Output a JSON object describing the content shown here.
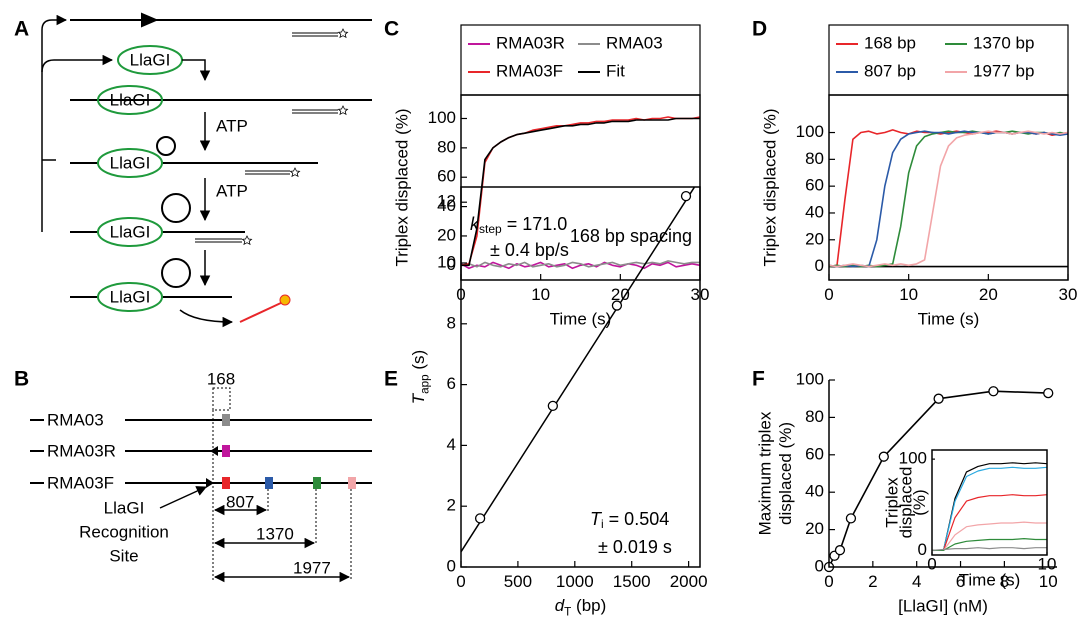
{
  "panel_letters": [
    "A",
    "B",
    "C",
    "D",
    "E",
    "F"
  ],
  "diagram_a": {
    "enzyme_labels": [
      "LlaGI",
      "LlaGI",
      "LlaGI",
      "LlaGI",
      "LlaGI"
    ],
    "step_labels": [
      "ATP",
      "ATP"
    ]
  },
  "diagram_b": {
    "spacing_label": "168",
    "substrates": [
      "RMA03",
      "RMA03R",
      "RMA03F"
    ],
    "distances": [
      "807",
      "1370",
      "1977"
    ],
    "site_label": [
      "LlaGI",
      "Recognition",
      "Site"
    ]
  },
  "chart_data": [
    {
      "type": "line",
      "ylabel": "Triplex displaced (%)",
      "xlabel": "Time (s)",
      "annotation": "168 bp spacing",
      "x": [
        0,
        1,
        2,
        3,
        4,
        5,
        6,
        7,
        8,
        9,
        10,
        11,
        12,
        13,
        14,
        15,
        16,
        17,
        18,
        19,
        20,
        21,
        22,
        23,
        24,
        25,
        26,
        27,
        28,
        29,
        30
      ],
      "series": [
        {
          "name": "RMA03R",
          "color": "#c0169c",
          "values": [
            1,
            -2,
            0,
            -1,
            2,
            0,
            -2,
            1,
            -1,
            0,
            2,
            -1,
            0,
            1,
            -2,
            0,
            1,
            -1,
            2,
            0,
            -1,
            1,
            0,
            -2,
            1,
            0,
            2,
            -1,
            0,
            1,
            0
          ]
        },
        {
          "name": "RMA03",
          "color": "#8c8c8c",
          "values": [
            0,
            1,
            -1,
            2,
            0,
            -1,
            1,
            0,
            2,
            -1,
            0,
            1,
            -1,
            0,
            2,
            1,
            -1,
            0,
            1,
            2,
            0,
            1,
            2,
            1,
            2,
            1,
            3,
            2,
            1,
            2,
            2
          ]
        },
        {
          "name": "RMA03F",
          "color": "#e8262a",
          "values": [
            0,
            1,
            20,
            70,
            80,
            84,
            87,
            89,
            90,
            92,
            93,
            94,
            95,
            95,
            96,
            97,
            97,
            98,
            98,
            99,
            99,
            99,
            100,
            99,
            100,
            100,
            101,
            100,
            100,
            100,
            101
          ]
        },
        {
          "name": "Fit",
          "color": "#000000",
          "values": [
            0,
            0,
            25,
            72,
            80,
            84,
            87,
            89,
            90,
            91,
            92,
            93,
            94,
            95,
            95,
            96,
            96,
            97,
            97,
            98,
            98,
            98,
            99,
            99,
            99,
            99,
            99,
            100,
            100,
            100,
            100
          ]
        }
      ],
      "xlim": [
        0,
        30
      ],
      "xticks": [
        0,
        10,
        20,
        30
      ],
      "ylim": [
        -10,
        116
      ],
      "yticks": [
        0,
        20,
        40,
        60,
        80,
        100
      ]
    },
    {
      "type": "line",
      "ylabel": "Triplex displaced (%)",
      "xlabel": "Time (s)",
      "x": [
        0,
        1,
        2,
        3,
        4,
        5,
        6,
        7,
        8,
        9,
        10,
        11,
        12,
        13,
        14,
        15,
        16,
        17,
        18,
        19,
        20,
        21,
        22,
        23,
        24,
        25,
        26,
        27,
        28,
        29,
        30
      ],
      "series": [
        {
          "color": "#000000",
          "values": [
            0,
            0,
            0,
            0,
            0,
            0,
            0,
            0,
            0,
            0,
            0,
            0,
            0,
            0,
            0,
            0,
            0,
            0,
            0,
            0,
            0,
            0,
            0,
            0,
            0,
            0,
            0,
            0,
            0,
            0,
            0
          ]
        },
        {
          "name": "168 bp",
          "color": "#e8262a",
          "values": [
            0,
            1,
            50,
            95,
            100,
            101,
            99,
            100,
            102,
            100,
            99,
            101,
            100,
            100,
            99,
            100,
            101,
            100,
            99,
            100,
            100,
            101,
            100,
            99,
            100,
            100,
            99,
            100,
            98,
            99,
            100
          ]
        },
        {
          "name": "1370 bp",
          "color": "#2e8b3a",
          "values": [
            0,
            1,
            0,
            1,
            0,
            1,
            0,
            1,
            2,
            30,
            70,
            90,
            97,
            99,
            100,
            101,
            100,
            100,
            101,
            100,
            99,
            100,
            100,
            101,
            100,
            99,
            100,
            100,
            99,
            100,
            99
          ]
        },
        {
          "name": "807 bp",
          "color": "#2b5aa8",
          "values": [
            1,
            0,
            1,
            0,
            1,
            0,
            20,
            60,
            85,
            95,
            99,
            100,
            101,
            100,
            100,
            99,
            100,
            101,
            100,
            100,
            99,
            100,
            100,
            99,
            100,
            100,
            99,
            100,
            99,
            98,
            99
          ]
        },
        {
          "name": "1977 bp",
          "color": "#f2a5a8",
          "values": [
            1,
            0,
            1,
            2,
            1,
            0,
            1,
            2,
            1,
            2,
            1,
            2,
            5,
            40,
            75,
            90,
            96,
            98,
            99,
            100,
            101,
            100,
            100,
            99,
            100,
            101,
            100,
            99,
            100,
            99,
            100
          ]
        }
      ],
      "xlim": [
        0,
        30
      ],
      "xticks": [
        0,
        10,
        20,
        30
      ],
      "ylim": [
        -10,
        128
      ],
      "yticks": [
        0,
        20,
        40,
        60,
        80,
        100
      ]
    },
    {
      "type": "scatter",
      "ylabel": {
        "main": "T",
        "sub": "app",
        "unit": " (s)"
      },
      "xlabel": {
        "main": "d",
        "sub": "T",
        "unit": " (bp)"
      },
      "annotations": {
        "k_symbol": "k",
        "k_sub": "step",
        "k_value": " = 171.0",
        "k_error": "± 0.4 bp/s",
        "t_symbol": "T",
        "t_sub": "i",
        "t_value": " = 0.504",
        "t_error": "± 0.019 s"
      },
      "x": [
        168,
        807,
        1370,
        1977
      ],
      "values": [
        1.6,
        5.3,
        8.6,
        12.2
      ],
      "fit": {
        "x": [
          0,
          2050
        ],
        "values": [
          0.5,
          12.49
        ]
      },
      "xlim": [
        0,
        2100
      ],
      "xticks": [
        0,
        500,
        1000,
        1500,
        2000
      ],
      "ylim": [
        0,
        12.5
      ],
      "yticks": [
        0,
        2,
        4,
        6,
        8,
        10,
        12
      ]
    },
    {
      "type": "line",
      "markers": true,
      "ylabel": [
        "Maximum triplex",
        "displaced (%)"
      ],
      "xlabel": "[LlaGI] (nM)",
      "x": [
        0,
        0.25,
        0.5,
        1,
        2.5,
        5,
        7.5,
        10
      ],
      "series": [
        {
          "color": "#000000",
          "values": [
            0,
            6,
            9,
            26,
            59,
            90,
            94,
            93
          ]
        }
      ],
      "xlim": [
        0,
        10.4
      ],
      "xticks": [
        0,
        2,
        4,
        6,
        8,
        10
      ],
      "ylim": [
        0,
        100
      ],
      "yticks": [
        0,
        20,
        40,
        60,
        80,
        100
      ]
    },
    {
      "type": "line",
      "ylabel": [
        "Triplex",
        "displaced",
        "(%)"
      ],
      "xlabel": "Time (s)",
      "x": [
        0,
        1,
        2,
        3,
        4,
        5,
        6,
        7,
        8,
        9,
        10
      ],
      "series": [
        {
          "color": "#000000",
          "values": [
            0,
            0,
            57,
            86,
            92,
            95,
            95,
            96,
            95,
            96,
            95
          ]
        },
        {
          "color": "#29a9e0",
          "values": [
            0,
            0,
            54,
            81,
            87,
            90,
            90,
            91,
            90,
            90,
            91
          ]
        },
        {
          "color": "#e8262a",
          "values": [
            0,
            0,
            36,
            54,
            58,
            60,
            60,
            61,
            60,
            60,
            61
          ]
        },
        {
          "color": "#f2a5a8",
          "values": [
            0,
            0,
            17,
            26,
            28,
            29,
            30,
            30,
            31,
            30,
            30
          ]
        },
        {
          "color": "#2e8b3a",
          "values": [
            0,
            0,
            7,
            10,
            11,
            12,
            12,
            12,
            13,
            12,
            12
          ]
        },
        {
          "color": "#8c8c8c",
          "values": [
            0,
            1,
            2,
            2,
            3,
            2,
            3,
            3,
            2,
            3,
            3
          ]
        }
      ],
      "xlim": [
        0,
        10
      ],
      "xticks": [
        0,
        10
      ],
      "ylim": [
        -5,
        110
      ],
      "yticks": [
        0,
        100
      ]
    }
  ]
}
